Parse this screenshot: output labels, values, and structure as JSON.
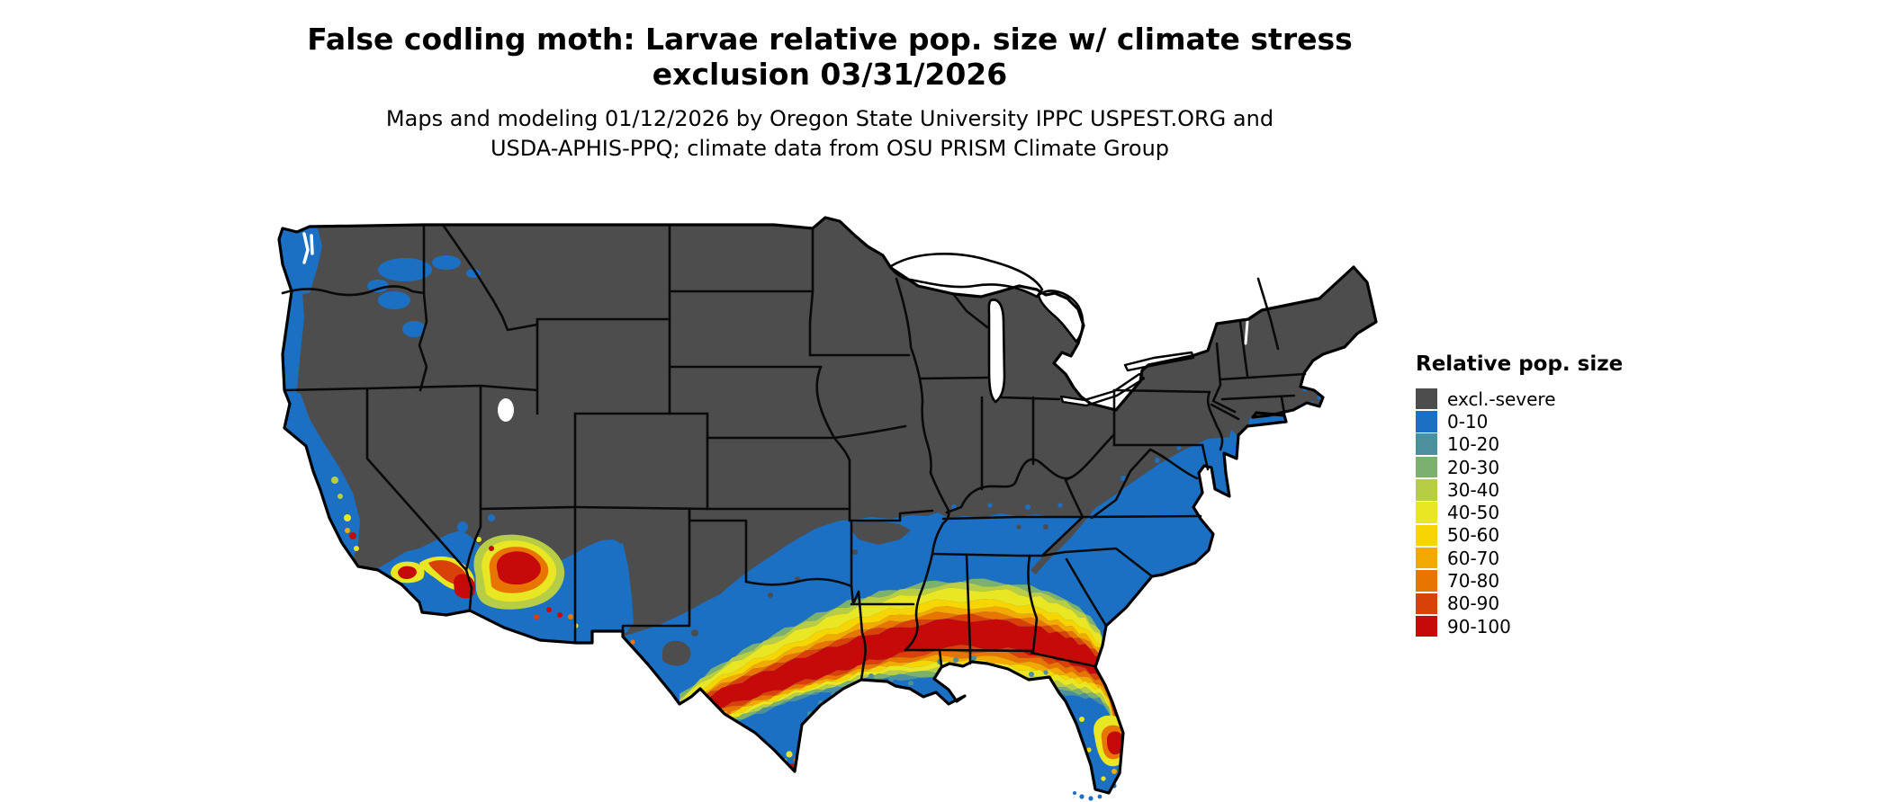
{
  "title": {
    "line1": "False codling moth: Larvae relative pop. size w/ climate stress",
    "line2": "exclusion 03/31/2026"
  },
  "subtitle": {
    "line1": "Maps and modeling 01/12/2026 by Oregon State University IPPC USPEST.ORG and",
    "line2": "USDA-APHIS-PPQ; climate data from OSU PRISM Climate Group"
  },
  "legend": {
    "title": "Relative pop. size",
    "entries": [
      {
        "label": "excl.-severe",
        "color": "#4d4d4d"
      },
      {
        "label": "0-10",
        "color": "#1b70c4"
      },
      {
        "label": "10-20",
        "color": "#4b909c"
      },
      {
        "label": "20-30",
        "color": "#7bb06e"
      },
      {
        "label": "30-40",
        "color": "#b7cd45"
      },
      {
        "label": "40-50",
        "color": "#e9e723"
      },
      {
        "label": "50-60",
        "color": "#f7d500"
      },
      {
        "label": "60-70",
        "color": "#f2a900"
      },
      {
        "label": "70-80",
        "color": "#e87500"
      },
      {
        "label": "80-90",
        "color": "#d84108"
      },
      {
        "label": "90-100",
        "color": "#c60a0a"
      }
    ]
  },
  "map": {
    "region": "Contiguous United States",
    "no_data_color": "#ffffff",
    "border_color": "#000000"
  }
}
